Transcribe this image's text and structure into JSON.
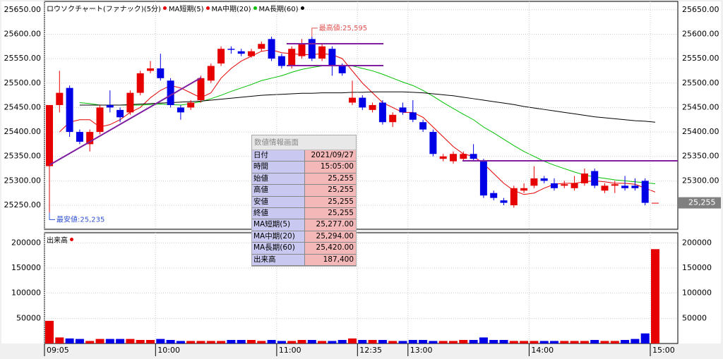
{
  "chart_data": [
    {
      "type": "candlestick",
      "title": "ロウソクチャート(ファナック)(5分)",
      "up_color": "#e60000",
      "down_color": "#0000e6",
      "title_color": "#e60000",
      "open": [
        25330,
        25455,
        25490,
        25400,
        25375,
        25400,
        25455,
        25445,
        25440,
        25480,
        25525,
        25530,
        25505,
        25450,
        25450,
        25465,
        25505,
        25540,
        25570,
        25565,
        25555,
        25570,
        25590,
        25555,
        25535,
        25555,
        25590,
        25550,
        25570,
        25535,
        25460,
        25470,
        25445,
        25460,
        25420,
        25450,
        25440,
        25420,
        25400,
        25345,
        25340,
        25345,
        25355,
        25340,
        25275,
        25260,
        25250,
        25280,
        25290,
        25305,
        25295,
        25290,
        25285,
        25295,
        25320,
        25280,
        25290,
        25290,
        25290,
        25300,
        25255
      ],
      "high": [
        25455,
        25525,
        25495,
        25405,
        25405,
        25455,
        25485,
        25450,
        25485,
        25525,
        25545,
        25560,
        25510,
        25455,
        25465,
        25515,
        25540,
        25575,
        25575,
        25570,
        25570,
        25585,
        25595,
        25560,
        25575,
        25590,
        25595,
        25580,
        25575,
        25540,
        25505,
        25475,
        25460,
        25465,
        25440,
        25460,
        25465,
        25425,
        25405,
        25355,
        25360,
        25360,
        25375,
        25345,
        25280,
        25265,
        25290,
        25295,
        25330,
        25310,
        25305,
        25300,
        25310,
        25325,
        25325,
        25295,
        25300,
        25310,
        25305,
        25305,
        25255
      ],
      "low": [
        25235,
        25440,
        25390,
        25375,
        25360,
        25395,
        25440,
        25420,
        25435,
        25475,
        25520,
        25505,
        25450,
        25425,
        25445,
        25460,
        25500,
        25535,
        25560,
        25555,
        25552,
        25565,
        25545,
        25530,
        25530,
        25550,
        25545,
        25545,
        25515,
        25515,
        25455,
        25445,
        25440,
        25415,
        25410,
        25435,
        25420,
        25400,
        25350,
        25340,
        25335,
        25340,
        25340,
        25265,
        25260,
        25250,
        25245,
        25275,
        25285,
        25295,
        25280,
        25285,
        25280,
        25290,
        25285,
        25275,
        25275,
        25280,
        25280,
        25250,
        25255
      ],
      "close": [
        25455,
        25480,
        25400,
        25380,
        25400,
        25450,
        25450,
        25430,
        25480,
        25520,
        25530,
        25510,
        25455,
        25440,
        25460,
        25510,
        25535,
        25570,
        25568,
        25560,
        25565,
        25580,
        25550,
        25535,
        25570,
        25580,
        25550,
        25575,
        25535,
        25520,
        25470,
        25450,
        25455,
        25420,
        25435,
        25440,
        25425,
        25405,
        25355,
        25350,
        25355,
        25355,
        25345,
        25270,
        25265,
        25255,
        25285,
        25285,
        25305,
        25300,
        25285,
        25293,
        25295,
        25315,
        25290,
        25290,
        25293,
        25285,
        25285,
        25255,
        25255
      ],
      "series": [
        {
          "name": "MA短期(5)",
          "color": "#e60000",
          "values": [
            null,
            25400,
            25420,
            25425,
            25425,
            25410,
            25415,
            25425,
            25440,
            25450,
            25470,
            25485,
            25495,
            25490,
            25480,
            25470,
            25480,
            25510,
            25530,
            25545,
            25555,
            25565,
            25568,
            25562,
            25560,
            25558,
            25558,
            25560,
            25558,
            25550,
            25525,
            25500,
            25480,
            25460,
            25450,
            25440,
            25440,
            25430,
            25410,
            25390,
            25370,
            25355,
            25350,
            25335,
            25315,
            25295,
            25280,
            25272,
            25275,
            25285,
            25293,
            25295,
            25295,
            25298,
            25300,
            25298,
            25295,
            25295,
            25293,
            25285,
            25277
          ]
        },
        {
          "name": "MA中期(20)",
          "color": "#00c000",
          "values": [
            null,
            null,
            null,
            25460,
            25458,
            25455,
            25455,
            25455,
            25455,
            25455,
            25456,
            25457,
            25456,
            25455,
            25458,
            25462,
            25468,
            25475,
            25483,
            25490,
            25497,
            25505,
            25510,
            25515,
            25522,
            25528,
            25532,
            25535,
            25536,
            25536,
            25535,
            25530,
            25525,
            25518,
            25510,
            25502,
            25495,
            25485,
            25473,
            25460,
            25448,
            25436,
            25425,
            25410,
            25398,
            25385,
            25372,
            25360,
            25350,
            25340,
            25332,
            25325,
            25318,
            25312,
            25308,
            25305,
            25302,
            25300,
            25298,
            25296,
            25294
          ]
        },
        {
          "name": "MA長期(60)",
          "color": "#000000",
          "values": [
            null,
            null,
            null,
            25455,
            25455,
            25455,
            25455,
            25455,
            25456,
            25457,
            25458,
            25459,
            25460,
            25461,
            25462,
            25463,
            25465,
            25467,
            25469,
            25471,
            25473,
            25475,
            25476,
            25477,
            25478,
            25479,
            25479,
            25480,
            25480,
            25480,
            25481,
            25481,
            25482,
            25482,
            25482,
            25482,
            25481,
            25480,
            25478,
            25476,
            25474,
            25471,
            25468,
            25465,
            25462,
            25459,
            25456,
            25452,
            25449,
            25446,
            25443,
            25440,
            25437,
            25434,
            25431,
            25429,
            25427,
            25425,
            25423,
            25422,
            25420
          ]
        }
      ],
      "ylim": [
        25201,
        25667
      ],
      "yticks": [
        {
          "value": 25250,
          "label": "25250.00"
        },
        {
          "value": 25300,
          "label": "25300.00"
        },
        {
          "value": 25350,
          "label": "25350.00"
        },
        {
          "value": 25400,
          "label": "25400.00"
        },
        {
          "value": 25450,
          "label": "25450.00"
        },
        {
          "value": 25500,
          "label": "25500.00"
        },
        {
          "value": 25550,
          "label": "25550.00"
        },
        {
          "value": 25600,
          "label": "25600.00"
        },
        {
          "value": 25650,
          "label": "25650.00"
        }
      ],
      "annotations": [
        {
          "text": "最高値:25,595",
          "value": 25595,
          "index": 26,
          "color": "#e05050"
        },
        {
          "text": "最安値:25,235",
          "value": 25235,
          "index": 0,
          "color": "#3050d0"
        }
      ],
      "last_price": {
        "value": 25255,
        "label": "25,255"
      }
    },
    {
      "type": "bar",
      "title": "出来高",
      "title_color": "#e60000",
      "categories": [
        "09:05",
        null,
        null,
        null,
        null,
        null,
        null,
        null,
        null,
        null,
        null,
        "10:00",
        null,
        null,
        null,
        null,
        null,
        null,
        null,
        null,
        null,
        null,
        null,
        "11:00",
        null,
        null,
        null,
        null,
        null,
        null,
        null,
        "12:35",
        null,
        null,
        null,
        null,
        "13:00",
        null,
        null,
        null,
        null,
        null,
        null,
        null,
        null,
        null,
        null,
        null,
        "14:00",
        null,
        null,
        null,
        null,
        null,
        null,
        null,
        null,
        null,
        null,
        null,
        "15:00"
      ],
      "values": [
        45000,
        12000,
        10000,
        9000,
        5000,
        9000,
        9000,
        9000,
        9000,
        7000,
        7000,
        9000,
        7000,
        5000,
        5000,
        5000,
        5000,
        5000,
        7000,
        7000,
        7000,
        5000,
        7000,
        5000,
        5000,
        7000,
        7000,
        5000,
        5000,
        7000,
        10000,
        7000,
        7000,
        7000,
        5000,
        5000,
        7000,
        7000,
        5000,
        5000,
        5000,
        7000,
        7000,
        12000,
        7000,
        7000,
        5000,
        5000,
        5000,
        5000,
        5000,
        5000,
        5000,
        5000,
        7000,
        5000,
        5000,
        7000,
        9000,
        20000,
        187400
      ],
      "ylim": [
        0,
        220000
      ],
      "yticks": [
        50000,
        100000,
        150000,
        200000
      ]
    }
  ],
  "info_panel": {
    "title": "数値情報画面",
    "rows": [
      [
        "日付",
        "2021/09/27"
      ],
      [
        "時間",
        "15:05:00"
      ],
      [
        "始値",
        "25,255"
      ],
      [
        "高値",
        "25,255"
      ],
      [
        "安値",
        "25,255"
      ],
      [
        "終値",
        "25,255"
      ],
      [
        "MA短期(5)",
        "25,277.00"
      ],
      [
        "MA中期(20)",
        "25,294.00"
      ],
      [
        "MA長期(60)",
        "25,420.00"
      ],
      [
        "出来高",
        "187,400"
      ]
    ]
  }
}
